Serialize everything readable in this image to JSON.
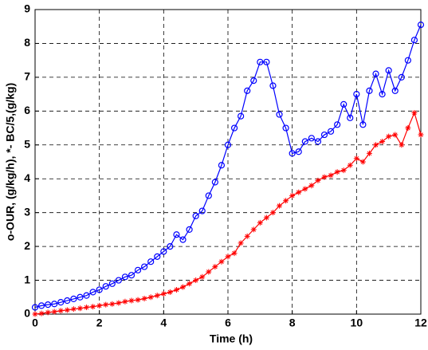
{
  "chart_data": {
    "type": "line",
    "xlabel": "Time (h)",
    "ylabel": "o-OUR, (g/kg/h), *- BC/5,(g/kg)",
    "x": [
      0,
      0.2,
      0.4,
      0.6,
      0.8,
      1,
      1.2,
      1.4,
      1.6,
      1.8,
      2,
      2.2,
      2.4,
      2.6,
      2.8,
      3,
      3.2,
      3.4,
      3.6,
      3.8,
      4,
      4.2,
      4.4,
      4.6,
      4.8,
      5,
      5.2,
      5.4,
      5.6,
      5.8,
      6,
      6.2,
      6.4,
      6.6,
      6.8,
      7,
      7.2,
      7.4,
      7.6,
      7.8,
      8,
      8.2,
      8.4,
      8.6,
      8.8,
      9,
      9.2,
      9.4,
      9.6,
      9.8,
      10,
      10.2,
      10.4,
      10.6,
      10.8,
      11,
      11.2,
      11.4,
      11.6,
      11.8,
      12
    ],
    "series": [
      {
        "color": "#0000ff",
        "marker": "circle",
        "values": [
          0.2,
          0.25,
          0.28,
          0.3,
          0.35,
          0.4,
          0.45,
          0.5,
          0.55,
          0.65,
          0.72,
          0.82,
          0.9,
          1.0,
          1.1,
          1.15,
          1.3,
          1.4,
          1.55,
          1.7,
          1.85,
          2.0,
          2.35,
          2.2,
          2.5,
          2.9,
          3.05,
          3.5,
          3.9,
          4.4,
          5.0,
          5.5,
          5.85,
          6.6,
          6.9,
          7.45,
          7.45,
          6.75,
          5.9,
          5.5,
          4.75,
          4.8,
          5.1,
          5.2,
          5.1,
          5.3,
          5.4,
          5.6,
          6.2,
          5.8,
          6.5,
          5.6,
          6.6,
          7.1,
          6.5,
          7.2,
          6.6,
          7.0,
          7.5,
          8.1,
          8.55
        ]
      },
      {
        "color": "#ff0000",
        "marker": "star",
        "values": [
          0,
          0.02,
          0.05,
          0.07,
          0.1,
          0.12,
          0.15,
          0.17,
          0.2,
          0.22,
          0.25,
          0.28,
          0.3,
          0.33,
          0.37,
          0.4,
          0.42,
          0.46,
          0.5,
          0.55,
          0.6,
          0.65,
          0.72,
          0.8,
          0.9,
          1.0,
          1.1,
          1.25,
          1.4,
          1.55,
          1.7,
          1.8,
          2.1,
          2.3,
          2.5,
          2.7,
          2.85,
          3.0,
          3.2,
          3.35,
          3.5,
          3.6,
          3.7,
          3.8,
          3.95,
          4.05,
          4.1,
          4.2,
          4.25,
          4.4,
          4.6,
          4.5,
          4.75,
          5.0,
          5.1,
          5.25,
          5.3,
          5.0,
          5.5,
          5.95,
          5.3
        ]
      }
    ],
    "xlim": [
      0,
      12
    ],
    "xticks": [
      0,
      2,
      4,
      6,
      8,
      10,
      12
    ],
    "ylim": [
      0,
      9
    ],
    "yticks": [
      0,
      1,
      2,
      3,
      4,
      5,
      6,
      7,
      8,
      9
    ],
    "grid": true
  }
}
